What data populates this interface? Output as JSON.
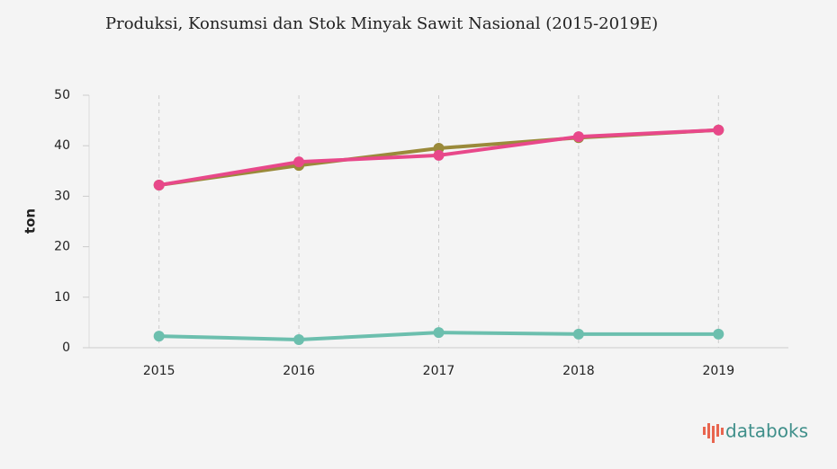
{
  "chart_data": {
    "type": "line",
    "title": "Produksi, Konsumsi dan Stok Minyak Sawit Nasional (2015-2019E)",
    "y_label": "ton",
    "x": [
      2015,
      2016,
      2017,
      2018,
      2019
    ],
    "series": [
      {
        "color": "#9a8a3a",
        "values": [
          32.2,
          36.1,
          39.5,
          41.6,
          43.1
        ]
      },
      {
        "color": "#e8488a",
        "values": [
          32.2,
          36.8,
          38.1,
          41.8,
          43.1
        ]
      },
      {
        "color": "#6cbfae",
        "values": [
          2.3,
          1.6,
          3.0,
          2.7,
          2.7
        ]
      }
    ],
    "xlim": [
      2014.5,
      2019.5
    ],
    "xticks": [
      2015,
      2016,
      2017,
      2018,
      2019
    ],
    "ylim": [
      0,
      50
    ],
    "yticks": [
      0,
      10,
      20,
      30,
      40,
      50
    ],
    "grid": "x",
    "brand": "databoks"
  }
}
